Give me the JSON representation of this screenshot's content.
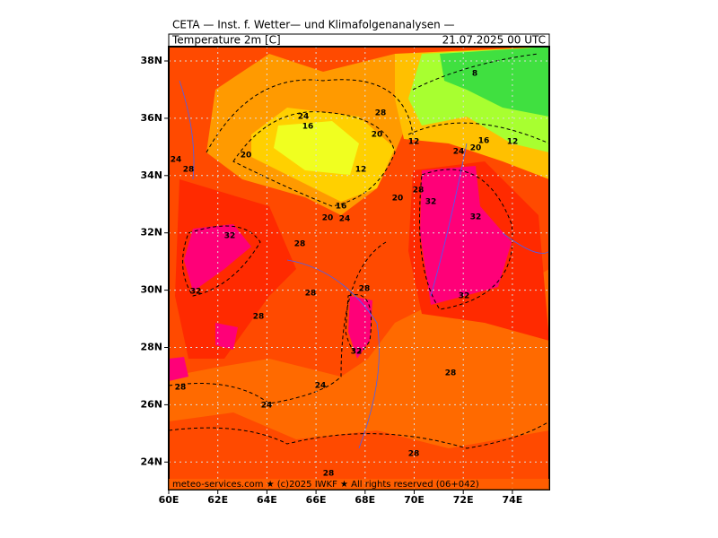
{
  "header": {
    "title": "CETA — Inst. f. Wetter— und Klimafolgenanalysen —",
    "variable": "Temperature 2m [C]",
    "valid_time": "21.07.2025 00 UTC"
  },
  "map": {
    "lat_labels": [
      "38N",
      "36N",
      "34N",
      "32N",
      "30N",
      "28N",
      "26N",
      "24N"
    ],
    "lon_labels": [
      "60E",
      "62E",
      "64E",
      "66E",
      "68E",
      "70E",
      "72E",
      "74E"
    ],
    "contour_labels": [
      "24",
      "28",
      "20",
      "24",
      "16",
      "28",
      "20",
      "12",
      "12",
      "8",
      "16",
      "12",
      "20",
      "24",
      "28",
      "20",
      "32",
      "16",
      "20",
      "24",
      "32",
      "32",
      "28",
      "32",
      "28",
      "28",
      "32",
      "28",
      "32",
      "28",
      "24",
      "28",
      "24",
      "28",
      "28"
    ]
  },
  "footer": "meteo-services.com ★ (c)2025 IWKF ★ All rights reserved (06+042)"
}
